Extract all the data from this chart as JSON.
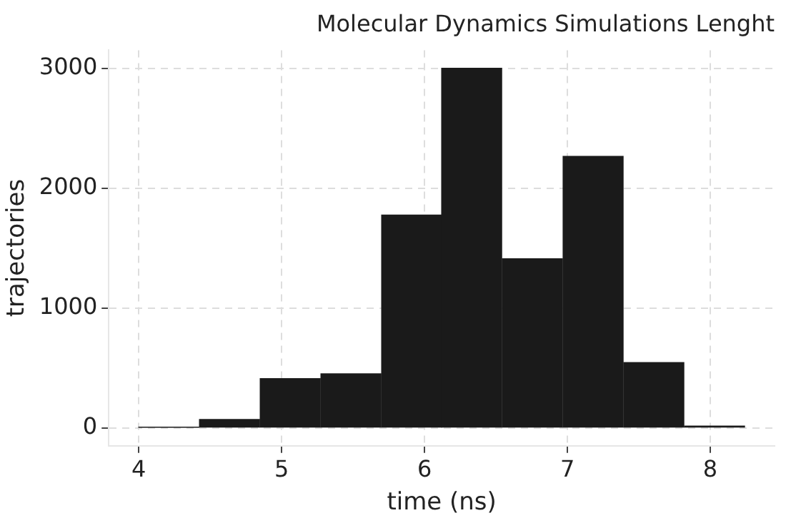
{
  "chart_data": {
    "type": "histogram",
    "title": "Molecular Dynamics Simulations Lenght",
    "xlabel": "time (ns)",
    "ylabel": "trajectories",
    "bins": [
      4.0,
      4.42,
      4.85,
      5.27,
      5.7,
      6.12,
      6.54,
      6.97,
      7.39,
      7.82,
      8.24
    ],
    "values": [
      5,
      70,
      410,
      450,
      1775,
      3000,
      1410,
      2265,
      545,
      15
    ],
    "color": "#1a1a1a",
    "xlim": [
      3.79,
      8.45
    ],
    "xticks": [
      4,
      5,
      6,
      7,
      8
    ],
    "ylim": [
      -150,
      3150
    ],
    "yticks": [
      0,
      1000,
      2000,
      3000
    ],
    "grid": true
  }
}
